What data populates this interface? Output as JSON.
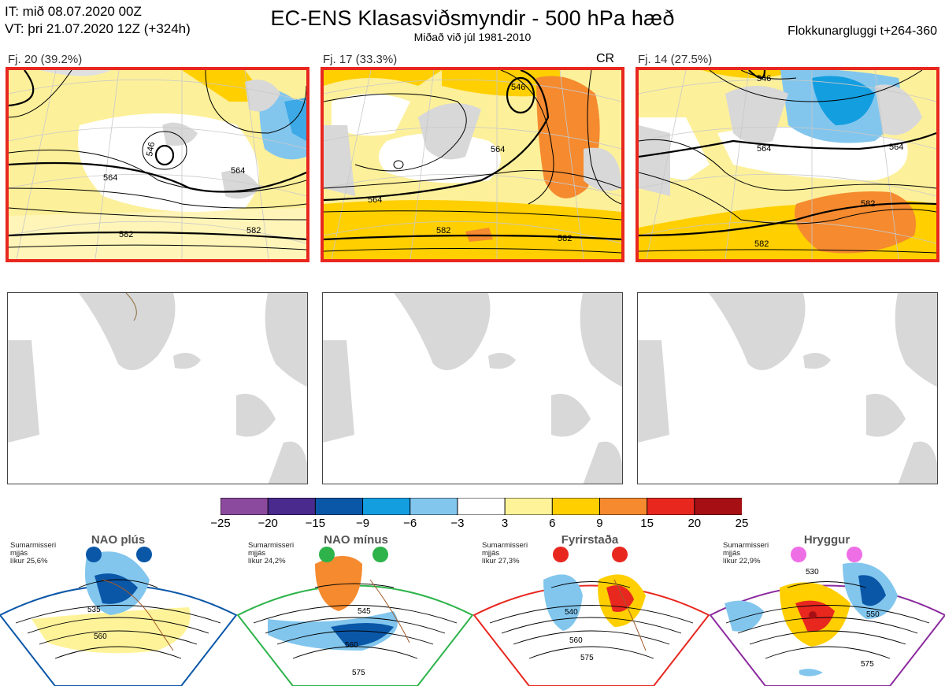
{
  "header": {
    "it_line": "IT: mið 08.07.2020 00Z",
    "vt_line": "VT: þri 21.07.2020 12Z  (+324h)",
    "title": "EC-ENS Klasasviðsmyndir - 500 hPa hæð",
    "subtitle": "Miðað við júl 1981-2010",
    "window": "Flokkunargluggi t+264-360"
  },
  "clusters": [
    {
      "label": "Fj. 20 (39.2%)",
      "tag": "",
      "contours": [
        "546",
        "564",
        "564",
        "582",
        "582"
      ]
    },
    {
      "label": "Fj. 17 (33.3%)",
      "tag": "CR",
      "contours": [
        "546",
        "564",
        "564",
        "582",
        "582"
      ]
    },
    {
      "label": "Fj. 14 (27.5%)",
      "tag": "",
      "contours": [
        "546",
        "564",
        "564",
        "582",
        "582"
      ]
    }
  ],
  "colorbar": {
    "ticks": [
      "−25",
      "−20",
      "−15",
      "−9",
      "−6",
      "−3",
      "3",
      "6",
      "9",
      "15",
      "20",
      "25"
    ],
    "colors": [
      "#8b4a9e",
      "#4a2a8c",
      "#0a57a8",
      "#139ee0",
      "#82c6ee",
      "#ffffff",
      "#fff39a",
      "#ffcf00",
      "#f58a2f",
      "#e8271f",
      "#a60f14"
    ]
  },
  "regimes": [
    {
      "name": "NAO plús",
      "note": [
        "Sumarmisseri",
        "mjjás",
        "líkur 25,6%"
      ],
      "contours": [
        "535",
        "560"
      ],
      "color": "#0a57a8"
    },
    {
      "name": "NAO mínus",
      "note": [
        "Sumarmisseri",
        "mjjás",
        "líkur 24,2%"
      ],
      "contours": [
        "545",
        "560",
        "575"
      ],
      "color": "#2db34a"
    },
    {
      "name": "Fyrirstaða",
      "note": [
        "Sumarmisseri",
        "mjjás",
        "líkur 27,3%"
      ],
      "contours": [
        "540",
        "560",
        "575"
      ],
      "color": "#e8271f"
    },
    {
      "name": "Hryggur",
      "note": [
        "Sumarmisseri",
        "mjjás",
        "líkur 22,9%"
      ],
      "contours": [
        "530",
        "550",
        "575"
      ],
      "color": "#8b2a9e"
    }
  ]
}
